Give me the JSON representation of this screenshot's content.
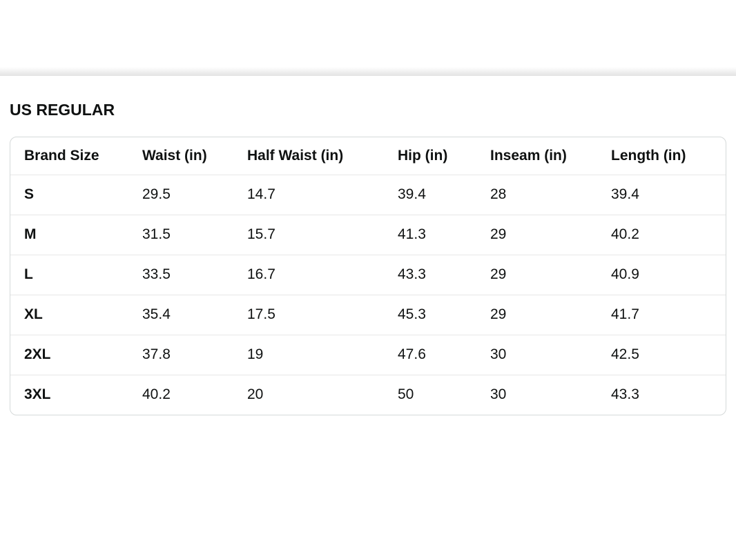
{
  "panel": {
    "section_title": "US REGULAR"
  },
  "size_chart": {
    "columns": [
      "Brand Size",
      "Waist (in)",
      "Half Waist (in)",
      "Hip (in)",
      "Inseam (in)",
      "Length (in)"
    ],
    "rows": [
      {
        "label": "S",
        "values": [
          "29.5",
          "14.7",
          "39.4",
          "28",
          "39.4"
        ]
      },
      {
        "label": "M",
        "values": [
          "31.5",
          "15.7",
          "41.3",
          "29",
          "40.2"
        ]
      },
      {
        "label": "L",
        "values": [
          "33.5",
          "16.7",
          "43.3",
          "29",
          "40.9"
        ]
      },
      {
        "label": "XL",
        "values": [
          "35.4",
          "17.5",
          "45.3",
          "29",
          "41.7"
        ]
      },
      {
        "label": "2XL",
        "values": [
          "37.8",
          "19",
          "47.6",
          "30",
          "42.5"
        ]
      },
      {
        "label": "3XL",
        "values": [
          "40.2",
          "20",
          "50",
          "30",
          "43.3"
        ]
      }
    ]
  },
  "colors": {
    "text": "#0f1111",
    "background": "#ffffff",
    "table_border": "#d5d9d9",
    "row_divider": "#e7e7e7",
    "shadow_band": "#e6e6e6"
  }
}
